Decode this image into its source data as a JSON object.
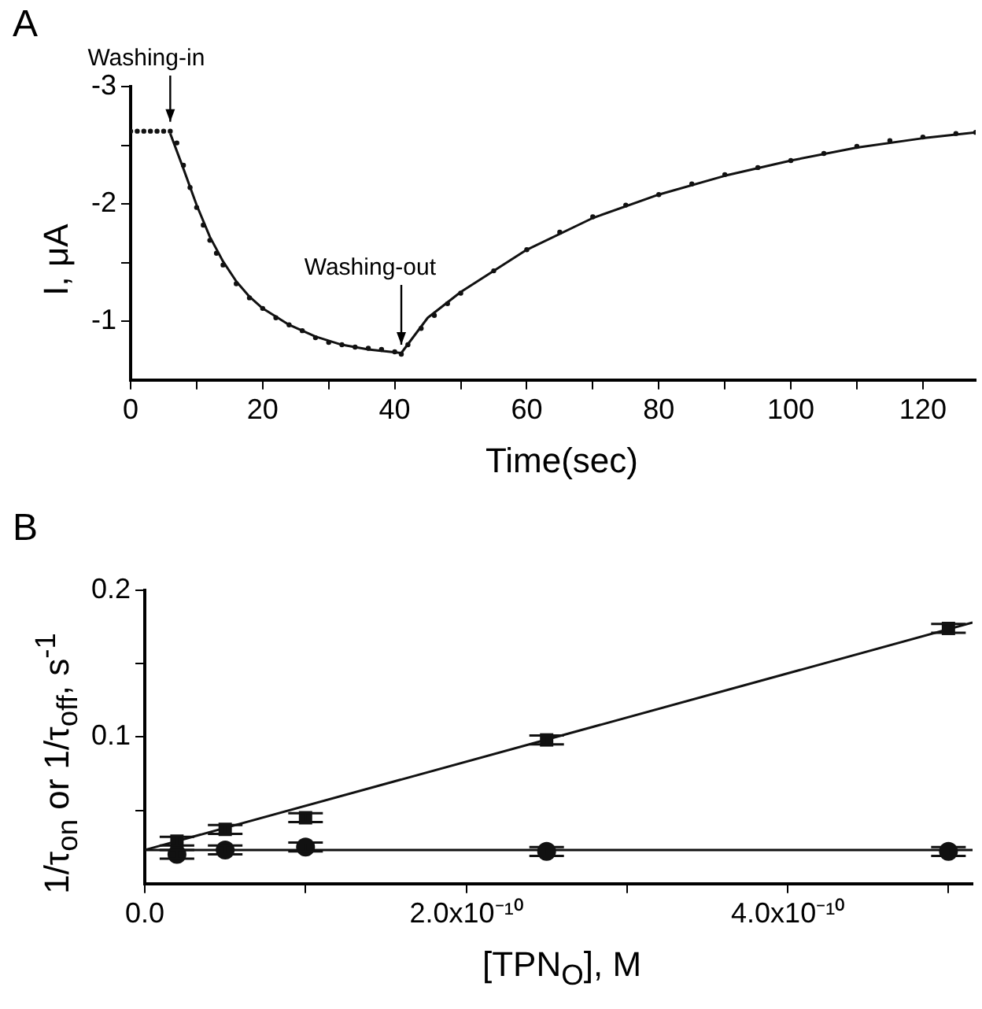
{
  "chart_data": [
    {
      "type": "scatter",
      "title": "A",
      "xlabel": "Time(sec)",
      "ylabel": "I, μA",
      "xlim": [
        0,
        128
      ],
      "ylim": [
        -0.5,
        -3
      ],
      "xticks": [
        0,
        {
          "value": 10,
          "label": null
        },
        20,
        {
          "value": 30,
          "label": null
        },
        40,
        {
          "value": 50,
          "label": null
        },
        60,
        {
          "value": 70,
          "label": null
        },
        80,
        {
          "value": 90,
          "label": null
        },
        100,
        {
          "value": 110,
          "label": null
        },
        120
      ],
      "yticks": [
        -3,
        {
          "value": -2.5,
          "label": null
        },
        -2,
        {
          "value": -1.5,
          "label": null
        },
        -1
      ],
      "grid": false,
      "legend": false,
      "series": [
        {
          "type": "scatter",
          "color": "#111111",
          "marker": "circle",
          "x": [
            0,
            1,
            2,
            3,
            4,
            5,
            6,
            7,
            8,
            9,
            10,
            11,
            12,
            13,
            14,
            16,
            18,
            20,
            22,
            24,
            26,
            28,
            30,
            32,
            34,
            36,
            38,
            40,
            41,
            42,
            44,
            46,
            48,
            50,
            55,
            60,
            65,
            70,
            75,
            80,
            85,
            90,
            95,
            100,
            105,
            110,
            115,
            120,
            125,
            128
          ],
          "values": [
            -2.62,
            -2.62,
            -2.62,
            -2.62,
            -2.62,
            -2.62,
            -2.62,
            -2.52,
            -2.33,
            -2.14,
            -1.97,
            -1.82,
            -1.69,
            -1.58,
            -1.48,
            -1.32,
            -1.2,
            -1.11,
            -1.03,
            -0.97,
            -0.92,
            -0.86,
            -0.82,
            -0.8,
            -0.78,
            -0.77,
            -0.76,
            -0.74,
            -0.72,
            -0.8,
            -0.94,
            -1.05,
            -1.15,
            -1.24,
            -1.43,
            -1.61,
            -1.76,
            -1.89,
            -1.99,
            -2.08,
            -2.17,
            -2.25,
            -2.31,
            -2.37,
            -2.43,
            -2.49,
            -2.54,
            -2.57,
            -2.6,
            -2.61
          ]
        },
        {
          "type": "line",
          "color": "#111111",
          "marker": "none",
          "line_style": "solid",
          "x": [
            6,
            8,
            10,
            12,
            14,
            16,
            18,
            20,
            24,
            28,
            32,
            36,
            41,
            45,
            50,
            60,
            70,
            80,
            90,
            100,
            110,
            120,
            128
          ],
          "values": [
            -2.6,
            -2.3,
            -1.99,
            -1.72,
            -1.51,
            -1.34,
            -1.21,
            -1.11,
            -0.97,
            -0.87,
            -0.8,
            -0.76,
            -0.73,
            -1.03,
            -1.25,
            -1.61,
            -1.88,
            -2.08,
            -2.24,
            -2.37,
            -2.48,
            -2.56,
            -2.61
          ]
        }
      ],
      "annotations": [
        {
          "text": "Washing-in",
          "x": 6,
          "y": -2.62
        },
        {
          "text": "Washing-out",
          "x": 41,
          "y": -0.72
        }
      ]
    },
    {
      "type": "scatter",
      "title": "B",
      "xlabel": "[TPN$_{O}$], M",
      "ylabel": "1/τ$_{on}$  or  1/τ$_{off}$, s$^{-1}$",
      "xlim": [
        0,
        5.15e-10
      ],
      "ylim": [
        0,
        0.2
      ],
      "xticks": [
        {
          "value": 0,
          "label": "0.0"
        },
        {
          "value": 1e-10,
          "label": null
        },
        {
          "value": 2e-10,
          "label": "2.0x10⁻¹⁰"
        },
        {
          "value": 3e-10,
          "label": null
        },
        {
          "value": 4e-10,
          "label": "4.0x10⁻¹⁰"
        },
        {
          "value": 5e-10,
          "label": null
        }
      ],
      "yticks": [
        {
          "value": 0.05,
          "label": null
        },
        0.1,
        {
          "value": 0.15,
          "label": null
        },
        0.2
      ],
      "grid": false,
      "legend": false,
      "series": [
        {
          "type": "scatter",
          "color": "#111111",
          "marker": "square",
          "x": [
            2e-11,
            5e-11,
            1e-10,
            2.5e-10,
            5e-10
          ],
          "values": [
            0.029,
            0.037,
            0.045,
            0.098,
            0.174
          ],
          "errors": [
            0.003,
            0.003,
            0.003,
            0.003,
            0.003
          ]
        },
        {
          "type": "scatter",
          "color": "#111111",
          "marker": "circle",
          "x": [
            2e-11,
            5e-11,
            1e-10,
            2.5e-10,
            5e-10
          ],
          "values": [
            0.02,
            0.023,
            0.025,
            0.022,
            0.022
          ],
          "errors": [
            0.003,
            0.003,
            0.003,
            0.003,
            0.003
          ]
        },
        {
          "type": "line",
          "color": "#111111",
          "marker": "none",
          "line_style": "solid",
          "x": [
            0,
            5.15e-10
          ],
          "values": [
            0.023,
            0.178
          ]
        },
        {
          "type": "line",
          "color": "#111111",
          "marker": "none",
          "line_style": "solid",
          "x": [
            0,
            5.15e-10
          ],
          "values": [
            0.023,
            0.023
          ]
        }
      ]
    }
  ]
}
